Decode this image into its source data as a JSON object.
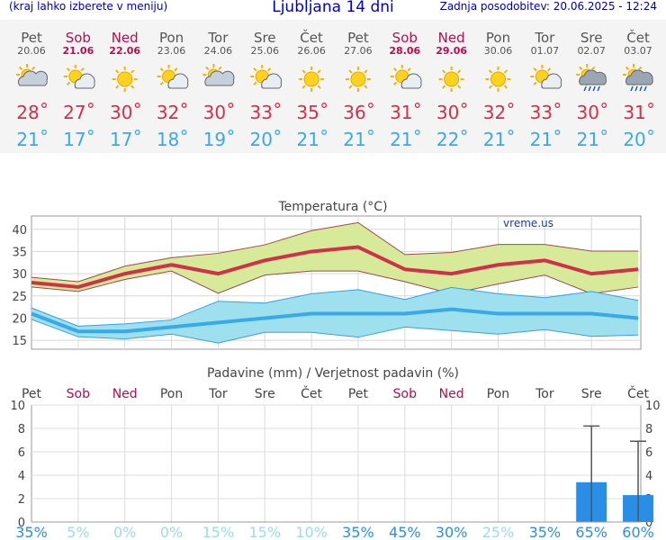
{
  "header": {
    "menu_hint": "(kraj lahko izberete v meniju)",
    "title": "Ljubljana 14 dni",
    "updated": "Zadnja posodobitev: 20.06.2025 - 12:24"
  },
  "colors": {
    "weekday": "#555555",
    "weekend": "#b0104e",
    "tmax": "#d0314a",
    "tmin": "#3aa9e8",
    "temp_max_band": "#d6ea9a",
    "temp_min_band": "#9ee0ee",
    "precip_bar": "#2b8ee6",
    "prob_low": "#9fd8f2",
    "prob_high": "#2b8ee6"
  },
  "forecast": {
    "days": [
      {
        "name": "Pet",
        "date": "20.06",
        "weekend": false,
        "icon": "partly-cloudy-icon",
        "tmax": "28",
        "tmin": "21"
      },
      {
        "name": "Sob",
        "date": "21.06",
        "weekend": true,
        "icon": "sun-cloud-icon",
        "tmax": "27",
        "tmin": "17"
      },
      {
        "name": "Ned",
        "date": "22.06",
        "weekend": true,
        "icon": "sun-icon",
        "tmax": "30",
        "tmin": "17"
      },
      {
        "name": "Pon",
        "date": "23.06",
        "weekend": false,
        "icon": "sun-cloud-icon",
        "tmax": "32",
        "tmin": "18"
      },
      {
        "name": "Tor",
        "date": "24.06",
        "weekend": false,
        "icon": "partly-cloudy-icon",
        "tmax": "30",
        "tmin": "19"
      },
      {
        "name": "Sre",
        "date": "25.06",
        "weekend": false,
        "icon": "sun-cloud-icon",
        "tmax": "33",
        "tmin": "20"
      },
      {
        "name": "Čet",
        "date": "26.06",
        "weekend": false,
        "icon": "sun-icon",
        "tmax": "35",
        "tmin": "21"
      },
      {
        "name": "Pet",
        "date": "27.06",
        "weekend": false,
        "icon": "sun-icon",
        "tmax": "36",
        "tmin": "21"
      },
      {
        "name": "Sob",
        "date": "28.06",
        "weekend": true,
        "icon": "sun-cloud-icon",
        "tmax": "31",
        "tmin": "21"
      },
      {
        "name": "Ned",
        "date": "29.06",
        "weekend": true,
        "icon": "sun-icon",
        "tmax": "30",
        "tmin": "22"
      },
      {
        "name": "Pon",
        "date": "30.06",
        "weekend": false,
        "icon": "sun-icon",
        "tmax": "32",
        "tmin": "21"
      },
      {
        "name": "Tor",
        "date": "01.07",
        "weekend": false,
        "icon": "sun-cloud-icon",
        "tmax": "33",
        "tmin": "21"
      },
      {
        "name": "Sre",
        "date": "02.07",
        "weekend": false,
        "icon": "sun-rain-icon",
        "tmax": "30",
        "tmin": "21"
      },
      {
        "name": "Čet",
        "date": "03.07",
        "weekend": false,
        "icon": "sun-rain-icon",
        "tmax": "31",
        "tmin": "20"
      }
    ]
  },
  "chart_data": [
    {
      "type": "line",
      "title": "Temperatura (°C)",
      "watermark": "vreme.us",
      "x": [
        "Pet",
        "Sob",
        "Ned",
        "Pon",
        "Tor",
        "Sre",
        "Čet",
        "Pet",
        "Sob",
        "Ned",
        "Pon",
        "Tor",
        "Sre",
        "Čet"
      ],
      "series": [
        {
          "values": [
            28,
            27,
            30,
            32,
            30,
            33,
            35,
            36,
            31,
            30,
            32,
            33,
            30,
            31
          ]
        },
        {
          "values": [
            21,
            17,
            17,
            18,
            19,
            20,
            21,
            21,
            21,
            22,
            21,
            21,
            21,
            20
          ]
        }
      ],
      "bands": [
        {
          "upper": [
            29.2,
            28.2,
            31.7,
            33.6,
            34.6,
            36.5,
            39.7,
            41.5,
            34.3,
            34.8,
            36.6,
            36.6,
            35.1,
            35.1
          ],
          "lower": [
            27.0,
            26.0,
            28.7,
            30.6,
            25.6,
            29.7,
            30.6,
            30.6,
            28.2,
            25.5,
            27.7,
            29.7,
            25.5,
            27.0
          ]
        },
        {
          "upper": [
            22.3,
            18.2,
            18.7,
            19.6,
            23.8,
            23.4,
            25.5,
            26.4,
            24.2,
            26.9,
            25.5,
            24.6,
            26.0,
            24.0
          ],
          "lower": [
            19.7,
            15.8,
            15.3,
            16.4,
            14.4,
            16.8,
            16.8,
            15.7,
            18.0,
            17.2,
            16.4,
            17.4,
            15.9,
            16.2
          ]
        }
      ],
      "ylim": [
        13,
        43
      ],
      "yticks": [
        15,
        20,
        25,
        30,
        35,
        40
      ]
    },
    {
      "type": "bar",
      "title": "Padavine (mm) / Verjetnost padavin (%)",
      "categories": [
        "Pet",
        "Sob",
        "Ned",
        "Pon",
        "Tor",
        "Sre",
        "Čet",
        "Pet",
        "Sob",
        "Ned",
        "Pon",
        "Tor",
        "Sre",
        "Čet"
      ],
      "values": [
        0,
        0,
        0,
        0,
        0,
        0,
        0,
        0,
        0,
        0,
        0,
        0,
        3.4,
        2.3
      ],
      "error_high": [
        null,
        null,
        null,
        null,
        null,
        null,
        null,
        null,
        null,
        null,
        null,
        null,
        8.2,
        6.9
      ],
      "probability": [
        "35%",
        "5%",
        "0%",
        "0%",
        "15%",
        "15%",
        "10%",
        "35%",
        "45%",
        "30%",
        "25%",
        "35%",
        "65%",
        "60%"
      ],
      "probability_strong": [
        true,
        false,
        false,
        false,
        false,
        false,
        false,
        true,
        true,
        true,
        false,
        true,
        true,
        true
      ],
      "ylim": [
        0,
        10
      ],
      "yticks": [
        0,
        2,
        4,
        6,
        8,
        10
      ]
    }
  ]
}
